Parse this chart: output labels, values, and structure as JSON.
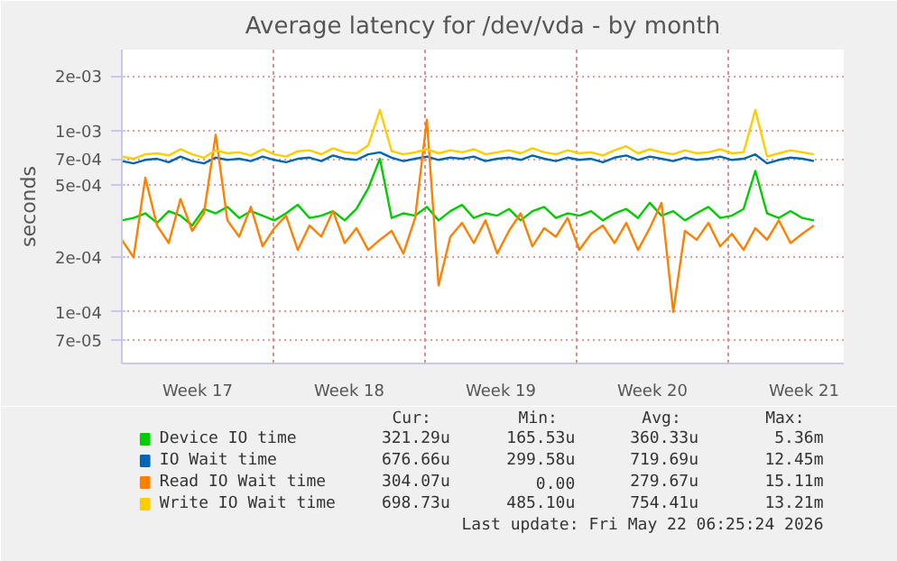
{
  "chart_data": {
    "type": "line",
    "title": "Average latency for /dev/vda - by month",
    "ylabel": "seconds",
    "log": "y",
    "grid": true,
    "legend": "bottom",
    "marker": "none",
    "line_style": "solid",
    "xlim": [
      "2026-04-20",
      "2026-05-23T08:00"
    ],
    "ylim": [
      5.2e-05,
      0.0028
    ],
    "xticks": [
      {
        "value": "2026-04-23T12:00",
        "label": "Week 17"
      },
      {
        "value": "2026-04-27",
        "label": null
      },
      {
        "value": "2026-04-30T12:00",
        "label": "Week 18"
      },
      {
        "value": "2026-05-04",
        "label": null
      },
      {
        "value": "2026-05-07T12:00",
        "label": "Week 19"
      },
      {
        "value": "2026-05-11",
        "label": null
      },
      {
        "value": "2026-05-14T12:00",
        "label": "Week 20"
      },
      {
        "value": "2026-05-18",
        "label": null
      },
      {
        "value": "2026-05-21T12:00",
        "label": "Week 21"
      }
    ],
    "yticks": [
      {
        "value": 7e-05,
        "label": "7e-05"
      },
      {
        "value": 0.0001,
        "label": "1e-04"
      },
      {
        "value": 0.0002,
        "label": "2e-04"
      },
      {
        "value": 0.0005,
        "label": "5e-04"
      },
      {
        "value": 0.0007,
        "label": "7e-04"
      },
      {
        "value": 0.001,
        "label": "1e-03"
      },
      {
        "value": 0.002,
        "label": "2e-03"
      }
    ],
    "x": [
      "2026-04-20T00:00",
      "2026-04-20T13:00",
      "2026-04-21T02:00",
      "2026-04-21T15:00",
      "2026-04-22T04:00",
      "2026-04-22T17:00",
      "2026-04-23T06:00",
      "2026-04-23T19:00",
      "2026-04-24T08:00",
      "2026-04-24T21:00",
      "2026-04-25T10:00",
      "2026-04-25T23:00",
      "2026-04-26T12:00",
      "2026-04-27T01:00",
      "2026-04-27T14:00",
      "2026-04-28T03:00",
      "2026-04-28T16:00",
      "2026-04-29T05:00",
      "2026-04-29T18:00",
      "2026-04-30T07:00",
      "2026-04-30T20:00",
      "2026-05-01T09:00",
      "2026-05-01T22:00",
      "2026-05-02T11:00",
      "2026-05-03T00:00",
      "2026-05-03T13:00",
      "2026-05-04T02:00",
      "2026-05-04T15:00",
      "2026-05-05T04:00",
      "2026-05-05T17:00",
      "2026-05-06T06:00",
      "2026-05-06T19:00",
      "2026-05-07T08:00",
      "2026-05-07T21:00",
      "2026-05-08T10:00",
      "2026-05-08T23:00",
      "2026-05-09T12:00",
      "2026-05-10T01:00",
      "2026-05-10T14:00",
      "2026-05-11T03:00",
      "2026-05-11T16:00",
      "2026-05-12T05:00",
      "2026-05-12T18:00",
      "2026-05-13T07:00",
      "2026-05-13T20:00",
      "2026-05-14T09:00",
      "2026-05-14T22:00",
      "2026-05-15T11:00",
      "2026-05-16T00:00",
      "2026-05-16T13:00",
      "2026-05-17T02:00",
      "2026-05-17T15:00",
      "2026-05-18T04:00",
      "2026-05-18T17:00",
      "2026-05-19T06:00",
      "2026-05-19T19:00",
      "2026-05-20T08:00",
      "2026-05-20T21:00",
      "2026-05-21T10:00",
      "2026-05-21T23:00"
    ],
    "series": [
      {
        "name": "Device IO time",
        "color": "#00cc00",
        "values": [
          0.00032,
          0.00033,
          0.00035,
          0.00031,
          0.00036,
          0.00034,
          0.0003,
          0.00037,
          0.00035,
          0.00038,
          0.00033,
          0.00036,
          0.00034,
          0.00032,
          0.00035,
          0.00039,
          0.00033,
          0.00034,
          0.00036,
          0.00032,
          0.00037,
          0.00048,
          0.0007,
          0.00033,
          0.00035,
          0.00034,
          0.00038,
          0.00032,
          0.00036,
          0.00039,
          0.00033,
          0.00035,
          0.00034,
          0.00037,
          0.00032,
          0.00036,
          0.00038,
          0.00033,
          0.00035,
          0.00034,
          0.00036,
          0.00032,
          0.00035,
          0.00037,
          0.00033,
          0.0004,
          0.00034,
          0.00036,
          0.00032,
          0.00035,
          0.00038,
          0.00033,
          0.00034,
          0.00037,
          0.0006,
          0.00035,
          0.00033,
          0.00036,
          0.00033,
          0.00032
        ]
      },
      {
        "name": "IO Wait time",
        "color": "#0066b3",
        "values": [
          0.00068,
          0.00066,
          0.00069,
          0.0007,
          0.00067,
          0.00072,
          0.00068,
          0.00066,
          0.00071,
          0.00069,
          0.0007,
          0.00068,
          0.00072,
          0.00069,
          0.00067,
          0.0007,
          0.00071,
          0.00068,
          0.00073,
          0.0007,
          0.00069,
          0.00074,
          0.00076,
          0.00071,
          0.00068,
          0.0007,
          0.00072,
          0.00069,
          0.00071,
          0.0007,
          0.00072,
          0.00068,
          0.0007,
          0.00071,
          0.00069,
          0.00073,
          0.0007,
          0.00068,
          0.00071,
          0.00069,
          0.0007,
          0.00067,
          0.00071,
          0.00073,
          0.00069,
          0.00072,
          0.0007,
          0.00068,
          0.00071,
          0.00069,
          0.0007,
          0.00072,
          0.00069,
          0.0007,
          0.00074,
          0.00066,
          0.00069,
          0.00071,
          0.0007,
          0.00068
        ]
      },
      {
        "name": "Read IO Wait time",
        "color": "#ff8000",
        "values": [
          0.00025,
          0.0002,
          0.00055,
          0.0003,
          0.00024,
          0.00042,
          0.00028,
          0.00035,
          0.00095,
          0.00032,
          0.00026,
          0.00038,
          0.00023,
          0.00029,
          0.00034,
          0.00022,
          0.0003,
          0.00026,
          0.00036,
          0.00024,
          0.00029,
          0.00022,
          0.00025,
          0.00028,
          0.00021,
          0.00033,
          0.00115,
          0.00014,
          0.00026,
          0.00031,
          0.00024,
          0.00032,
          0.00021,
          0.00028,
          0.00035,
          0.00023,
          0.00029,
          0.00026,
          0.00033,
          0.00022,
          0.00027,
          0.0003,
          0.00024,
          0.00031,
          0.00022,
          0.00029,
          0.0004,
          0.0001,
          0.00028,
          0.00025,
          0.00031,
          0.00023,
          0.00027,
          0.00022,
          0.00029,
          0.00025,
          0.00032,
          0.00024,
          0.00027,
          0.0003
        ]
      },
      {
        "name": "Write IO Wait time",
        "color": "#ffcc00",
        "values": [
          0.00072,
          0.0007,
          0.00074,
          0.00075,
          0.00073,
          0.00079,
          0.00074,
          0.00071,
          0.00078,
          0.00075,
          0.00076,
          0.00073,
          0.00079,
          0.00074,
          0.00072,
          0.00077,
          0.00078,
          0.00074,
          0.0008,
          0.00076,
          0.00075,
          0.00083,
          0.0013,
          0.00077,
          0.00074,
          0.00076,
          0.00079,
          0.00075,
          0.00078,
          0.00076,
          0.00079,
          0.00074,
          0.00076,
          0.00078,
          0.00075,
          0.0008,
          0.00076,
          0.00074,
          0.00078,
          0.00075,
          0.00076,
          0.00073,
          0.00078,
          0.00082,
          0.00075,
          0.00079,
          0.00076,
          0.00074,
          0.00078,
          0.00075,
          0.00076,
          0.00079,
          0.00075,
          0.00076,
          0.0013,
          0.00072,
          0.00075,
          0.00078,
          0.00076,
          0.00074
        ]
      }
    ],
    "annotations": [
      "Cur:",
      "Min:",
      "Avg:",
      "Max:",
      "321.29u",
      "165.53u",
      "360.33u",
      "5.36m",
      "676.66u",
      "299.58u",
      "719.69u",
      "12.45m",
      "304.07u",
      "0.00",
      "279.67u",
      "15.11m",
      "698.73u",
      "485.10u",
      "754.41u",
      "13.21m",
      "Last update: Fri May 22 06:25:24 2026"
    ]
  }
}
